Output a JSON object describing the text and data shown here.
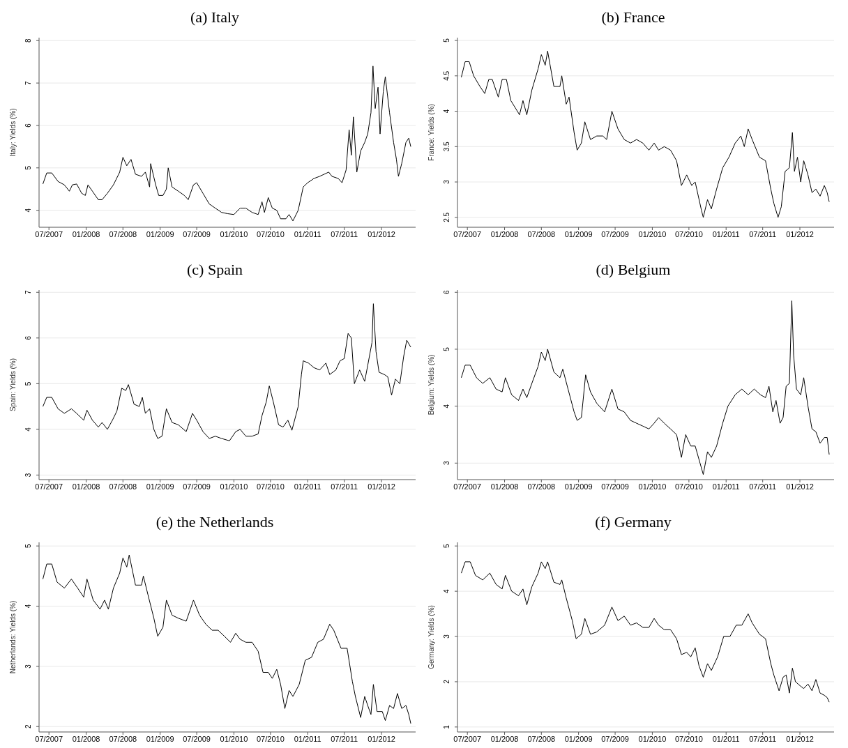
{
  "chart_data": [
    {
      "type": "line",
      "title": "(a) Italy",
      "ylabel": "Italy: Yields (%)",
      "color": "#000000",
      "grid": "y",
      "xlim": [
        "2007-05-13",
        "2012-06-18"
      ],
      "ylim": [
        3.6,
        8.07
      ],
      "yticks": [
        4,
        5,
        6,
        7,
        8
      ],
      "xticks": [
        {
          "value": "2007-07-01",
          "label": "07/2007"
        },
        {
          "value": "2008-01-01",
          "label": "01/2008"
        },
        {
          "value": "2008-07-01",
          "label": "07/2008"
        },
        {
          "value": "2009-01-01",
          "label": "01/2009"
        },
        {
          "value": "2009-07-01",
          "label": "07/2009"
        },
        {
          "value": "2010-01-01",
          "label": "01/2010"
        },
        {
          "value": "2010-07-01",
          "label": "07/2010"
        },
        {
          "value": "2011-01-01",
          "label": "01/2011"
        },
        {
          "value": "2011-07-01",
          "label": "07/2011"
        },
        {
          "value": "2012-01-01",
          "label": "01/2012"
        }
      ],
      "x": [
        "2007-06-01",
        "2007-06-20",
        "2007-07-15",
        "2007-08-15",
        "2007-09-15",
        "2007-10-10",
        "2007-10-25",
        "2007-11-15",
        "2007-12-10",
        "2007-12-28",
        "2008-01-10",
        "2008-02-01",
        "2008-03-01",
        "2008-03-20",
        "2008-04-15",
        "2008-05-15",
        "2008-06-15",
        "2008-07-01",
        "2008-07-20",
        "2008-08-10",
        "2008-09-01",
        "2008-10-01",
        "2008-10-20",
        "2008-11-10",
        "2008-11-15",
        "2008-12-10",
        "2008-12-25",
        "2009-01-15",
        "2009-02-01",
        "2009-02-10",
        "2009-03-01",
        "2009-04-01",
        "2009-05-01",
        "2009-05-20",
        "2009-06-15",
        "2009-07-01",
        "2009-08-01",
        "2009-09-01",
        "2009-10-01",
        "2009-11-01",
        "2009-12-01",
        "2010-01-01",
        "2010-02-01",
        "2010-03-01",
        "2010-04-01",
        "2010-05-01",
        "2010-05-20",
        "2010-06-01",
        "2010-06-20",
        "2010-07-10",
        "2010-08-01",
        "2010-08-20",
        "2010-09-15",
        "2010-10-01",
        "2010-10-20",
        "2010-11-15",
        "2010-12-10",
        "2011-01-01",
        "2011-02-01",
        "2011-03-01",
        "2011-04-15",
        "2011-05-01",
        "2011-06-01",
        "2011-06-20",
        "2011-07-10",
        "2011-07-25",
        "2011-08-05",
        "2011-08-15",
        "2011-09-01",
        "2011-09-20",
        "2011-10-10",
        "2011-10-25",
        "2011-11-10",
        "2011-11-20",
        "2011-12-01",
        "2011-12-15",
        "2011-12-25",
        "2012-01-10",
        "2012-01-20",
        "2012-02-10",
        "2012-03-01",
        "2012-03-15",
        "2012-03-25",
        "2012-04-10",
        "2012-05-01",
        "2012-05-15",
        "2012-05-25"
      ],
      "values": [
        4.62,
        4.88,
        4.88,
        4.68,
        4.6,
        4.45,
        4.6,
        4.62,
        4.4,
        4.35,
        4.6,
        4.45,
        4.25,
        4.25,
        4.4,
        4.6,
        4.9,
        5.25,
        5.05,
        5.2,
        4.85,
        4.8,
        4.9,
        4.55,
        5.1,
        4.6,
        4.35,
        4.35,
        4.5,
        5.0,
        4.55,
        4.45,
        4.35,
        4.25,
        4.6,
        4.65,
        4.4,
        4.15,
        4.05,
        3.95,
        3.92,
        3.9,
        4.05,
        4.05,
        3.95,
        3.9,
        4.2,
        3.95,
        4.3,
        4.05,
        4.0,
        3.8,
        3.8,
        3.9,
        3.75,
        4.0,
        4.55,
        4.65,
        4.75,
        4.8,
        4.9,
        4.8,
        4.75,
        4.65,
        4.95,
        5.9,
        5.3,
        6.2,
        4.9,
        5.4,
        5.6,
        5.8,
        6.3,
        7.4,
        6.4,
        6.9,
        5.8,
        6.8,
        7.15,
        6.3,
        5.6,
        5.2,
        4.8,
        5.1,
        5.6,
        5.7,
        5.5
      ]
    },
    {
      "type": "line",
      "title": "(b) France",
      "ylabel": "France: Yields (%)",
      "color": "#000000",
      "grid": "y",
      "xlim": [
        "2007-05-13",
        "2012-06-18"
      ],
      "ylim": [
        2.36,
        5.04
      ],
      "yticks": [
        2.5,
        3,
        3.5,
        4,
        4.5,
        5
      ],
      "xticks": [
        {
          "value": "2007-07-01",
          "label": "07/2007"
        },
        {
          "value": "2008-01-01",
          "label": "01/2008"
        },
        {
          "value": "2008-07-01",
          "label": "07/2008"
        },
        {
          "value": "2009-01-01",
          "label": "01/2009"
        },
        {
          "value": "2009-07-01",
          "label": "07/2009"
        },
        {
          "value": "2010-01-01",
          "label": "01/2010"
        },
        {
          "value": "2010-07-01",
          "label": "07/2010"
        },
        {
          "value": "2011-01-01",
          "label": "01/2011"
        },
        {
          "value": "2011-07-01",
          "label": "07/2011"
        },
        {
          "value": "2012-01-01",
          "label": "01/2012"
        }
      ],
      "x": [
        "2007-06-01",
        "2007-06-20",
        "2007-07-10",
        "2007-08-01",
        "2007-09-01",
        "2007-09-25",
        "2007-10-15",
        "2007-11-01",
        "2007-12-01",
        "2007-12-20",
        "2008-01-10",
        "2008-02-01",
        "2008-03-15",
        "2008-04-01",
        "2008-04-20",
        "2008-05-15",
        "2008-06-15",
        "2008-07-01",
        "2008-07-20",
        "2008-08-01",
        "2008-09-01",
        "2008-10-01",
        "2008-10-10",
        "2008-11-01",
        "2008-11-15",
        "2008-12-10",
        "2008-12-25",
        "2009-01-15",
        "2009-02-01",
        "2009-03-01",
        "2009-04-01",
        "2009-05-01",
        "2009-05-20",
        "2009-06-15",
        "2009-07-15",
        "2009-08-15",
        "2009-09-15",
        "2009-10-15",
        "2009-11-15",
        "2009-12-15",
        "2010-01-10",
        "2010-02-01",
        "2010-03-01",
        "2010-04-01",
        "2010-05-01",
        "2010-05-25",
        "2010-06-20",
        "2010-07-15",
        "2010-08-01",
        "2010-09-01",
        "2010-09-10",
        "2010-10-01",
        "2010-10-20",
        "2010-11-15",
        "2010-12-15",
        "2011-01-15",
        "2011-02-15",
        "2011-03-15",
        "2011-04-01",
        "2011-04-20",
        "2011-05-10",
        "2011-06-15",
        "2011-07-15",
        "2011-08-10",
        "2011-08-25",
        "2011-09-15",
        "2011-10-01",
        "2011-10-20",
        "2011-11-10",
        "2011-11-25",
        "2011-12-05",
        "2011-12-20",
        "2012-01-05",
        "2012-01-20",
        "2012-02-10",
        "2012-03-01",
        "2012-03-20",
        "2012-04-10",
        "2012-05-01",
        "2012-05-15",
        "2012-05-25"
      ],
      "values": [
        4.48,
        4.7,
        4.7,
        4.5,
        4.35,
        4.25,
        4.45,
        4.45,
        4.2,
        4.45,
        4.45,
        4.15,
        3.95,
        4.15,
        3.95,
        4.3,
        4.6,
        4.8,
        4.65,
        4.85,
        4.35,
        4.35,
        4.5,
        4.1,
        4.2,
        3.7,
        3.45,
        3.55,
        3.85,
        3.6,
        3.65,
        3.65,
        3.6,
        4.0,
        3.75,
        3.6,
        3.55,
        3.6,
        3.55,
        3.45,
        3.55,
        3.45,
        3.5,
        3.45,
        3.3,
        2.95,
        3.1,
        2.95,
        3.0,
        2.6,
        2.5,
        2.75,
        2.62,
        2.9,
        3.2,
        3.35,
        3.55,
        3.65,
        3.5,
        3.75,
        3.6,
        3.35,
        3.3,
        2.9,
        2.7,
        2.5,
        2.65,
        3.15,
        3.2,
        3.7,
        3.15,
        3.35,
        3.0,
        3.3,
        3.1,
        2.85,
        2.9,
        2.8,
        2.95,
        2.85,
        2.72
      ]
    },
    {
      "type": "line",
      "title": "(c) Spain",
      "ylabel": "Spain: Yields (%)",
      "color": "#000000",
      "grid": "y",
      "xlim": [
        "2007-05-13",
        "2012-06-18"
      ],
      "ylim": [
        2.9,
        7.05
      ],
      "yticks": [
        3,
        4,
        5,
        6,
        7
      ],
      "xticks": [
        {
          "value": "2007-07-01",
          "label": "07/2007"
        },
        {
          "value": "2008-01-01",
          "label": "01/2008"
        },
        {
          "value": "2008-07-01",
          "label": "07/2008"
        },
        {
          "value": "2009-01-01",
          "label": "01/2009"
        },
        {
          "value": "2009-07-01",
          "label": "07/2009"
        },
        {
          "value": "2010-01-01",
          "label": "01/2010"
        },
        {
          "value": "2010-07-01",
          "label": "07/2010"
        },
        {
          "value": "2011-01-01",
          "label": "01/2011"
        },
        {
          "value": "2011-07-01",
          "label": "07/2011"
        },
        {
          "value": "2012-01-01",
          "label": "01/2012"
        }
      ],
      "x": [
        "2007-06-01",
        "2007-06-20",
        "2007-07-15",
        "2007-08-15",
        "2007-09-15",
        "2007-10-20",
        "2007-11-15",
        "2007-12-20",
        "2008-01-05",
        "2008-02-01",
        "2008-03-01",
        "2008-03-20",
        "2008-04-15",
        "2008-05-10",
        "2008-06-01",
        "2008-06-25",
        "2008-07-15",
        "2008-07-28",
        "2008-08-25",
        "2008-09-20",
        "2008-10-05",
        "2008-10-20",
        "2008-11-10",
        "2008-12-01",
        "2008-12-20",
        "2009-01-10",
        "2009-02-01",
        "2009-03-01",
        "2009-04-01",
        "2009-05-10",
        "2009-06-10",
        "2009-07-01",
        "2009-08-01",
        "2009-09-01",
        "2009-10-01",
        "2009-11-01",
        "2009-12-10",
        "2010-01-10",
        "2010-02-01",
        "2010-03-01",
        "2010-04-01",
        "2010-05-01",
        "2010-05-20",
        "2010-06-10",
        "2010-06-25",
        "2010-07-15",
        "2010-08-10",
        "2010-09-01",
        "2010-09-25",
        "2010-10-15",
        "2010-11-15",
        "2010-12-01",
        "2010-12-10",
        "2011-01-05",
        "2011-02-01",
        "2011-03-01",
        "2011-04-01",
        "2011-04-20",
        "2011-05-20",
        "2011-06-10",
        "2011-07-01",
        "2011-07-20",
        "2011-08-05",
        "2011-08-20",
        "2011-09-15",
        "2011-10-10",
        "2011-10-25",
        "2011-11-15",
        "2011-11-22",
        "2011-12-05",
        "2011-12-20",
        "2012-01-15",
        "2012-02-01",
        "2012-02-20",
        "2012-03-10",
        "2012-04-01",
        "2012-04-20",
        "2012-05-05",
        "2012-05-25"
      ],
      "values": [
        4.5,
        4.7,
        4.7,
        4.45,
        4.35,
        4.45,
        4.35,
        4.2,
        4.42,
        4.2,
        4.05,
        4.15,
        4.0,
        4.2,
        4.4,
        4.9,
        4.85,
        4.98,
        4.55,
        4.5,
        4.7,
        4.35,
        4.45,
        4.0,
        3.8,
        3.85,
        4.45,
        4.15,
        4.1,
        3.95,
        4.35,
        4.2,
        3.95,
        3.8,
        3.85,
        3.8,
        3.75,
        3.95,
        4.0,
        3.85,
        3.85,
        3.9,
        4.3,
        4.6,
        4.95,
        4.6,
        4.1,
        4.05,
        4.2,
        3.98,
        4.5,
        5.2,
        5.5,
        5.45,
        5.35,
        5.3,
        5.45,
        5.2,
        5.3,
        5.5,
        5.55,
        6.1,
        6.0,
        5.0,
        5.3,
        5.05,
        5.4,
        5.9,
        6.75,
        5.7,
        5.25,
        5.2,
        5.15,
        4.75,
        5.1,
        5.0,
        5.6,
        5.95,
        5.8
      ]
    },
    {
      "type": "line",
      "title": "(d) Belgium",
      "ylabel": "Belgium: Yields (%)",
      "color": "#000000",
      "grid": "y",
      "xlim": [
        "2007-05-13",
        "2012-06-18"
      ],
      "ylim": [
        2.71,
        6.04
      ],
      "yticks": [
        3,
        4,
        5,
        6
      ],
      "xticks": [
        {
          "value": "2007-07-01",
          "label": "07/2007"
        },
        {
          "value": "2008-01-01",
          "label": "01/2008"
        },
        {
          "value": "2008-07-01",
          "label": "07/2008"
        },
        {
          "value": "2009-01-01",
          "label": "01/2009"
        },
        {
          "value": "2009-07-01",
          "label": "07/2009"
        },
        {
          "value": "2010-01-01",
          "label": "01/2010"
        },
        {
          "value": "2010-07-01",
          "label": "07/2010"
        },
        {
          "value": "2011-01-01",
          "label": "01/2011"
        },
        {
          "value": "2011-07-01",
          "label": "07/2011"
        },
        {
          "value": "2012-01-01",
          "label": "01/2012"
        }
      ],
      "x": [
        "2007-06-01",
        "2007-06-20",
        "2007-07-15",
        "2007-08-15",
        "2007-09-15",
        "2007-10-20",
        "2007-11-20",
        "2007-12-20",
        "2008-01-05",
        "2008-02-05",
        "2008-03-10",
        "2008-04-01",
        "2008-04-20",
        "2008-05-15",
        "2008-06-15",
        "2008-07-01",
        "2008-07-20",
        "2008-08-01",
        "2008-09-01",
        "2008-10-01",
        "2008-10-15",
        "2008-11-10",
        "2008-12-10",
        "2008-12-25",
        "2009-01-15",
        "2009-02-05",
        "2009-03-01",
        "2009-04-01",
        "2009-05-10",
        "2009-06-15",
        "2009-07-15",
        "2009-08-15",
        "2009-09-15",
        "2009-10-15",
        "2009-11-15",
        "2009-12-15",
        "2010-01-10",
        "2010-02-01",
        "2010-03-01",
        "2010-04-01",
        "2010-05-01",
        "2010-05-25",
        "2010-06-15",
        "2010-07-10",
        "2010-08-01",
        "2010-08-25",
        "2010-09-10",
        "2010-10-01",
        "2010-10-20",
        "2010-11-15",
        "2010-12-15",
        "2011-01-10",
        "2011-02-15",
        "2011-03-20",
        "2011-04-20",
        "2011-05-20",
        "2011-06-20",
        "2011-07-15",
        "2011-08-01",
        "2011-08-20",
        "2011-09-05",
        "2011-09-25",
        "2011-10-10",
        "2011-10-25",
        "2011-11-10",
        "2011-11-22",
        "2011-12-01",
        "2011-12-15",
        "2012-01-05",
        "2012-01-20",
        "2012-02-10",
        "2012-03-01",
        "2012-03-20",
        "2012-04-10",
        "2012-05-01",
        "2012-05-15",
        "2012-05-25"
      ],
      "values": [
        4.5,
        4.72,
        4.72,
        4.5,
        4.4,
        4.5,
        4.3,
        4.25,
        4.5,
        4.2,
        4.1,
        4.3,
        4.15,
        4.4,
        4.7,
        4.95,
        4.8,
        5.0,
        4.6,
        4.5,
        4.65,
        4.3,
        3.9,
        3.75,
        3.8,
        4.55,
        4.25,
        4.05,
        3.9,
        4.3,
        3.95,
        3.9,
        3.75,
        3.7,
        3.65,
        3.6,
        3.7,
        3.8,
        3.7,
        3.6,
        3.5,
        3.1,
        3.5,
        3.3,
        3.3,
        3.0,
        2.8,
        3.2,
        3.1,
        3.3,
        3.7,
        4.0,
        4.2,
        4.3,
        4.2,
        4.3,
        4.2,
        4.15,
        4.35,
        3.9,
        4.1,
        3.7,
        3.8,
        4.35,
        4.4,
        5.85,
        4.9,
        4.3,
        4.2,
        4.5,
        4.0,
        3.6,
        3.55,
        3.35,
        3.45,
        3.45,
        3.15
      ]
    },
    {
      "type": "line",
      "title": "(e) the Netherlands",
      "ylabel": "Netherlands: Yields (%)",
      "color": "#000000",
      "grid": "y",
      "xlim": [
        "2007-05-13",
        "2012-06-18"
      ],
      "ylim": [
        1.91,
        5.06
      ],
      "yticks": [
        2,
        3,
        4,
        5
      ],
      "xticks": [
        {
          "value": "2007-07-01",
          "label": "07/2007"
        },
        {
          "value": "2008-01-01",
          "label": "01/2008"
        },
        {
          "value": "2008-07-01",
          "label": "07/2008"
        },
        {
          "value": "2009-01-01",
          "label": "01/2009"
        },
        {
          "value": "2009-07-01",
          "label": "07/2009"
        },
        {
          "value": "2010-01-01",
          "label": "01/2010"
        },
        {
          "value": "2010-07-01",
          "label": "07/2010"
        },
        {
          "value": "2011-01-01",
          "label": "01/2011"
        },
        {
          "value": "2011-07-01",
          "label": "07/2011"
        },
        {
          "value": "2012-01-01",
          "label": "01/2012"
        }
      ],
      "x": [
        "2007-06-01",
        "2007-06-20",
        "2007-07-15",
        "2007-08-10",
        "2007-09-15",
        "2007-10-20",
        "2007-11-20",
        "2007-12-20",
        "2008-01-05",
        "2008-02-05",
        "2008-03-10",
        "2008-04-01",
        "2008-04-20",
        "2008-05-15",
        "2008-06-15",
        "2008-07-01",
        "2008-07-20",
        "2008-08-01",
        "2008-09-01",
        "2008-10-01",
        "2008-10-10",
        "2008-11-01",
        "2008-12-01",
        "2008-12-20",
        "2009-01-15",
        "2009-02-01",
        "2009-03-01",
        "2009-04-01",
        "2009-05-10",
        "2009-06-15",
        "2009-07-15",
        "2009-08-15",
        "2009-09-15",
        "2009-10-15",
        "2009-11-15",
        "2009-12-15",
        "2010-01-10",
        "2010-02-01",
        "2010-03-01",
        "2010-04-01",
        "2010-05-01",
        "2010-05-25",
        "2010-06-20",
        "2010-07-10",
        "2010-08-01",
        "2010-08-20",
        "2010-09-10",
        "2010-10-01",
        "2010-10-20",
        "2010-11-20",
        "2010-12-20",
        "2011-01-20",
        "2011-02-20",
        "2011-03-20",
        "2011-04-20",
        "2011-05-10",
        "2011-06-15",
        "2011-07-15",
        "2011-08-10",
        "2011-08-25",
        "2011-09-20",
        "2011-10-10",
        "2011-10-25",
        "2011-11-10",
        "2011-11-22",
        "2011-12-10",
        "2012-01-05",
        "2012-01-20",
        "2012-02-10",
        "2012-03-01",
        "2012-03-20",
        "2012-04-10",
        "2012-05-01",
        "2012-05-15",
        "2012-05-25"
      ],
      "values": [
        4.45,
        4.7,
        4.7,
        4.4,
        4.3,
        4.45,
        4.3,
        4.15,
        4.45,
        4.1,
        3.95,
        4.1,
        3.95,
        4.3,
        4.55,
        4.8,
        4.65,
        4.85,
        4.35,
        4.35,
        4.5,
        4.2,
        3.8,
        3.5,
        3.65,
        4.1,
        3.85,
        3.8,
        3.75,
        4.1,
        3.85,
        3.7,
        3.6,
        3.6,
        3.5,
        3.4,
        3.55,
        3.45,
        3.4,
        3.4,
        3.25,
        2.9,
        2.9,
        2.8,
        2.95,
        2.7,
        2.3,
        2.6,
        2.5,
        2.7,
        3.1,
        3.15,
        3.4,
        3.45,
        3.7,
        3.6,
        3.3,
        3.3,
        2.75,
        2.5,
        2.15,
        2.5,
        2.35,
        2.2,
        2.7,
        2.25,
        2.25,
        2.1,
        2.35,
        2.3,
        2.55,
        2.3,
        2.35,
        2.2,
        2.05
      ]
    },
    {
      "type": "line",
      "title": "(f) Germany",
      "ylabel": "Germany: Yields (%)",
      "color": "#000000",
      "grid": "y",
      "xlim": [
        "2007-05-13",
        "2012-06-18"
      ],
      "ylim": [
        0.89,
        5.08
      ],
      "yticks": [
        1,
        2,
        3,
        4,
        5
      ],
      "xticks": [
        {
          "value": "2007-07-01",
          "label": "07/2007"
        },
        {
          "value": "2008-01-01",
          "label": "01/2008"
        },
        {
          "value": "2008-07-01",
          "label": "07/2008"
        },
        {
          "value": "2009-01-01",
          "label": "01/2009"
        },
        {
          "value": "2009-07-01",
          "label": "07/2009"
        },
        {
          "value": "2010-01-01",
          "label": "01/2010"
        },
        {
          "value": "2010-07-01",
          "label": "07/2010"
        },
        {
          "value": "2011-01-01",
          "label": "01/2011"
        },
        {
          "value": "2011-07-01",
          "label": "07/2011"
        },
        {
          "value": "2012-01-01",
          "label": "01/2012"
        }
      ],
      "x": [
        "2007-06-01",
        "2007-06-20",
        "2007-07-15",
        "2007-08-10",
        "2007-09-15",
        "2007-10-20",
        "2007-11-20",
        "2007-12-20",
        "2008-01-05",
        "2008-02-05",
        "2008-03-10",
        "2008-04-01",
        "2008-04-20",
        "2008-05-15",
        "2008-06-15",
        "2008-07-01",
        "2008-07-20",
        "2008-08-01",
        "2008-09-01",
        "2008-10-01",
        "2008-10-10",
        "2008-11-01",
        "2008-12-01",
        "2008-12-20",
        "2009-01-15",
        "2009-02-01",
        "2009-03-01",
        "2009-04-01",
        "2009-05-10",
        "2009-06-15",
        "2009-07-15",
        "2009-08-15",
        "2009-09-15",
        "2009-10-15",
        "2009-11-15",
        "2009-12-15",
        "2010-01-10",
        "2010-02-01",
        "2010-03-01",
        "2010-04-01",
        "2010-05-01",
        "2010-05-25",
        "2010-06-20",
        "2010-07-10",
        "2010-08-01",
        "2010-08-20",
        "2010-09-10",
        "2010-10-01",
        "2010-10-20",
        "2010-11-20",
        "2010-12-20",
        "2011-01-20",
        "2011-02-20",
        "2011-03-20",
        "2011-04-20",
        "2011-05-10",
        "2011-06-15",
        "2011-07-15",
        "2011-08-10",
        "2011-08-25",
        "2011-09-20",
        "2011-10-10",
        "2011-10-25",
        "2011-11-10",
        "2011-11-25",
        "2011-12-10",
        "2012-01-05",
        "2012-01-20",
        "2012-02-10",
        "2012-03-01",
        "2012-03-20",
        "2012-04-10",
        "2012-05-01",
        "2012-05-15",
        "2012-05-25"
      ],
      "values": [
        4.4,
        4.65,
        4.65,
        4.35,
        4.25,
        4.4,
        4.15,
        4.05,
        4.35,
        4.0,
        3.9,
        4.05,
        3.7,
        4.1,
        4.4,
        4.65,
        4.5,
        4.65,
        4.2,
        4.15,
        4.25,
        3.85,
        3.35,
        2.95,
        3.05,
        3.4,
        3.05,
        3.1,
        3.25,
        3.65,
        3.35,
        3.45,
        3.25,
        3.3,
        3.2,
        3.2,
        3.4,
        3.25,
        3.15,
        3.15,
        2.95,
        2.6,
        2.65,
        2.55,
        2.75,
        2.35,
        2.1,
        2.4,
        2.25,
        2.55,
        3.0,
        3.0,
        3.25,
        3.25,
        3.5,
        3.3,
        3.05,
        2.95,
        2.4,
        2.15,
        1.8,
        2.1,
        2.15,
        1.75,
        2.3,
        2.0,
        1.9,
        1.85,
        1.95,
        1.8,
        2.05,
        1.75,
        1.7,
        1.65,
        1.55
      ]
    }
  ]
}
